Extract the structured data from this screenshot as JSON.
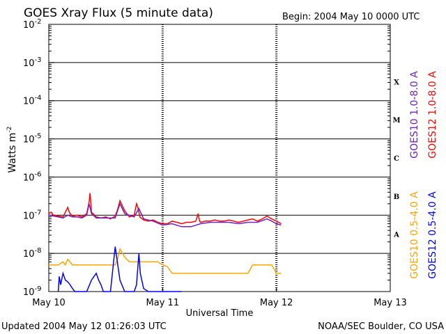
{
  "header": {
    "title": "GOES Xray Flux (5 minute data)",
    "begin": "Begin:  2004 May 10 0000 UTC"
  },
  "footer": {
    "updated": "Updated 2004 May 12 01:26:03 UTC",
    "credit": "NOAA/SEC Boulder, CO USA"
  },
  "chart_data": {
    "type": "line",
    "ylabel_main": "Watts m",
    "ylabel_exp": "-2",
    "xlabel": "Universal Time",
    "yscale": "log",
    "ylim": [
      1e-09,
      0.01
    ],
    "xlim": [
      0,
      72
    ],
    "x_unit": "hours since 2004 May 10 0000 UTC",
    "y_ticks": [
      {
        "value": -2,
        "base": "10",
        "exp": "-2"
      },
      {
        "value": -3,
        "base": "10",
        "exp": "-3"
      },
      {
        "value": -4,
        "base": "10",
        "exp": "-4"
      },
      {
        "value": -5,
        "base": "10",
        "exp": "-5"
      },
      {
        "value": -6,
        "base": "10",
        "exp": "-6"
      },
      {
        "value": -7,
        "base": "10",
        "exp": "-7"
      },
      {
        "value": -8,
        "base": "10",
        "exp": "-8"
      },
      {
        "value": -9,
        "base": "10",
        "exp": "-9"
      }
    ],
    "x_ticks": [
      {
        "value": 0,
        "label": "May 10"
      },
      {
        "value": 24,
        "label": "May 11"
      },
      {
        "value": 48,
        "label": "May 12"
      },
      {
        "value": 72,
        "label": "May 13"
      }
    ],
    "flare_classes": [
      {
        "label": "X",
        "value": -3.5
      },
      {
        "label": "M",
        "value": -4.5
      },
      {
        "label": "C",
        "value": -5.5
      },
      {
        "label": "B",
        "value": -6.5
      },
      {
        "label": "A",
        "value": -7.5
      }
    ],
    "gridlines": [
      -3,
      -4,
      -5,
      -6,
      -7,
      -8
    ],
    "legend_right": [
      {
        "name": "GOES12 1.0-8.0 A",
        "color": "#ff0000"
      },
      {
        "name": "GOES10 1.0-8.0 A",
        "color": "#7020c0"
      },
      {
        "name": "GOES12 0.5-4.0 A",
        "color": "#0000ff"
      },
      {
        "name": "GOES10 0.5-4.0 A",
        "color": "#ffa500"
      }
    ],
    "series": [
      {
        "name": "GOES12 1.0-8.0 A",
        "color": "#ff0000",
        "x": [
          0,
          0.5,
          1,
          2,
          3,
          3.5,
          4,
          4.2,
          4.5,
          5,
          6,
          7,
          8,
          8.5,
          8.7,
          9,
          10,
          11,
          12,
          13,
          14,
          14.5,
          15,
          16,
          17,
          18,
          18.5,
          18.8,
          19.2,
          20,
          21,
          22,
          23,
          24,
          25,
          26,
          27,
          28,
          29,
          30,
          31,
          31.5,
          31.8,
          32,
          33,
          34,
          35,
          36,
          37,
          38,
          39,
          40,
          41,
          42,
          43,
          44,
          45,
          46,
          47,
          48,
          49
        ],
        "y": [
          1.1e-07,
          1.2e-07,
          1e-07,
          9.5e-08,
          9e-08,
          1.2e-07,
          1.6e-07,
          1.3e-07,
          1.1e-07,
          9.5e-08,
          1e-07,
          9e-08,
          1.1e-07,
          2.2e-07,
          3.8e-07,
          1.2e-07,
          9e-08,
          8.5e-08,
          9e-08,
          8e-08,
          9.5e-08,
          1.4e-07,
          2.4e-07,
          1.3e-07,
          9e-08,
          1e-07,
          2e-07,
          1.6e-07,
          9e-08,
          7.5e-08,
          7e-08,
          7.5e-08,
          6.5e-08,
          6e-08,
          6e-08,
          7e-08,
          6.5e-08,
          6e-08,
          6.5e-08,
          6.5e-08,
          7e-08,
          1.1e-07,
          7e-08,
          6.5e-08,
          7e-08,
          7e-08,
          7.5e-08,
          7e-08,
          7e-08,
          7.5e-08,
          7e-08,
          6.5e-08,
          7e-08,
          7.5e-08,
          8e-08,
          7e-08,
          8e-08,
          9.5e-08,
          8e-08,
          7e-08,
          6e-08
        ]
      },
      {
        "name": "GOES10 1.0-8.0 A",
        "color": "#7020c0",
        "x": [
          0,
          1,
          2,
          3,
          4,
          5,
          6,
          7,
          8,
          8.5,
          9,
          10,
          12,
          14,
          15,
          16,
          18,
          19,
          20,
          22,
          24,
          26,
          28,
          30,
          32,
          34,
          36,
          38,
          40,
          42,
          44,
          46,
          47,
          48,
          49
        ],
        "y": [
          1e-07,
          9.5e-08,
          9e-08,
          8.5e-08,
          1e-07,
          9e-08,
          9e-08,
          8.5e-08,
          1e-07,
          2e-07,
          1.1e-07,
          8.5e-08,
          8.5e-08,
          8.5e-08,
          2e-07,
          1.1e-07,
          9e-08,
          1.5e-07,
          8e-08,
          7e-08,
          5.5e-08,
          6e-08,
          5e-08,
          5e-08,
          6e-08,
          6.5e-08,
          6.5e-08,
          6.5e-08,
          6e-08,
          6.5e-08,
          6.5e-08,
          8e-08,
          7e-08,
          6e-08,
          5.5e-08
        ]
      },
      {
        "name": "GOES10 0.5-4.0 A",
        "color": "#ffa500",
        "x": [
          0,
          1,
          2,
          3,
          3.5,
          4,
          5,
          6,
          7,
          8,
          9,
          10,
          11,
          12,
          13,
          14,
          14.5,
          15,
          16,
          17,
          18,
          19,
          20,
          21,
          22,
          23,
          24,
          25,
          26,
          27,
          28,
          29,
          30,
          31,
          32,
          33,
          34,
          35,
          36,
          37,
          38,
          40,
          42,
          43,
          44,
          45,
          46,
          47,
          48,
          49
        ],
        "y": [
          5e-09,
          5e-09,
          5e-09,
          6e-09,
          5e-09,
          7e-09,
          5e-09,
          5e-09,
          5e-09,
          5e-09,
          5e-09,
          5e-09,
          5e-09,
          5e-09,
          5e-09,
          5e-09,
          7e-09,
          1.3e-08,
          8e-09,
          6e-09,
          6e-09,
          6e-09,
          6e-09,
          6e-09,
          6e-09,
          6e-09,
          5e-09,
          4.5e-09,
          3e-09,
          3e-09,
          3e-09,
          3e-09,
          3e-09,
          3e-09,
          3e-09,
          3e-09,
          3e-09,
          3e-09,
          3e-09,
          3e-09,
          3e-09,
          3e-09,
          3e-09,
          5e-09,
          5e-09,
          5e-09,
          5e-09,
          5e-09,
          3e-09,
          3e-09
        ]
      },
      {
        "name": "GOES12 0.5-4.0 A",
        "color": "#0000ff",
        "x": [
          2,
          2.2,
          2.5,
          3,
          3.5,
          4,
          4.5,
          5,
          5.5,
          6,
          7,
          8,
          9,
          10,
          10.5,
          11,
          11.5,
          12,
          13,
          14,
          15,
          16,
          17,
          18,
          18.5,
          19,
          19.3,
          20,
          21,
          22,
          23,
          24,
          25,
          26,
          27,
          28
        ],
        "y": [
          1e-09,
          2.5e-09,
          1.5e-09,
          3e-09,
          2e-09,
          1.8e-09,
          1.5e-09,
          1.2e-09,
          1e-09,
          1e-09,
          1e-09,
          1e-09,
          2e-09,
          3e-09,
          2e-09,
          1.5e-09,
          1e-09,
          1e-09,
          1e-09,
          1.5e-08,
          2e-09,
          1e-09,
          1e-09,
          1e-09,
          1.5e-09,
          1e-08,
          3e-09,
          1.2e-09,
          1e-09,
          1e-09,
          1e-09,
          1e-09,
          1e-09,
          1e-09,
          1e-09,
          1e-09
        ]
      }
    ]
  }
}
